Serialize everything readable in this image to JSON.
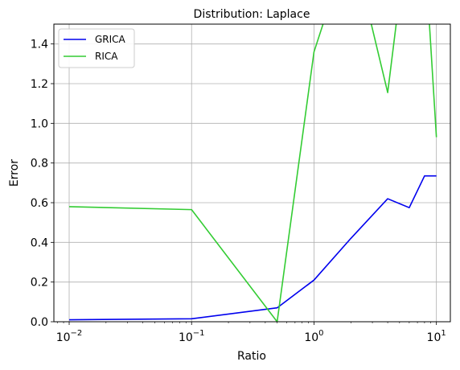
{
  "chart_data": {
    "type": "line",
    "title": "Distribution: Laplace",
    "xlabel": "Ratio",
    "ylabel": "Error",
    "xscale": "log",
    "xlim": [
      0.0075,
      13
    ],
    "ylim": [
      0,
      1.5
    ],
    "grid": true,
    "legend_position": "top-left",
    "xticks": [
      {
        "value": 0.01,
        "base": "10",
        "exp": "−2"
      },
      {
        "value": 0.1,
        "base": "10",
        "exp": "−1"
      },
      {
        "value": 1,
        "base": "10",
        "exp": "0"
      },
      {
        "value": 10,
        "base": "10",
        "exp": "1"
      }
    ],
    "yticks": [
      "0.0",
      "0.2",
      "0.4",
      "0.6",
      "0.8",
      "1.0",
      "1.2",
      "1.4"
    ],
    "series": [
      {
        "name": "GRICA",
        "color": "#0000ee",
        "x": [
          0.01,
          0.1,
          0.5,
          1,
          2,
          4,
          6,
          8,
          10
        ],
        "y": [
          0.01,
          0.015,
          0.07,
          0.21,
          0.42,
          0.62,
          0.575,
          0.735,
          0.735
        ]
      },
      {
        "name": "RICA",
        "color": "#33cc33",
        "x": [
          0.01,
          0.1,
          0.5,
          1,
          2,
          4,
          6,
          8,
          10
        ],
        "y": [
          0.58,
          0.565,
          0.0,
          1.36,
          1.93,
          1.155,
          2.03,
          1.9,
          0.93
        ]
      }
    ]
  }
}
